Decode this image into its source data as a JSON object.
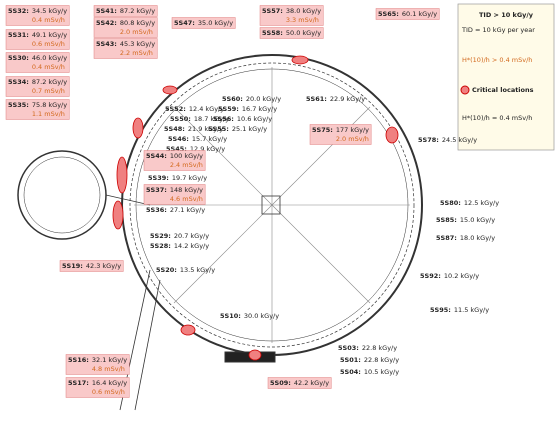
{
  "legend": {
    "title": "TID > 10 kGy/y",
    "tid_note": "TID = 10 kGy per year",
    "dose_title": "H*(10)/h > 0.4 mSv/h",
    "critical": "Critical locations",
    "dose_note": "H*(10)/h = 0.4 mSv/h"
  },
  "locations": [
    {
      "id": "5S32:",
      "tid": "34.5 kGy/y",
      "dose": "0.4 mSv/h"
    },
    {
      "id": "5S31:",
      "tid": "49.1 kGy/y",
      "dose": "0.6 mSv/h"
    },
    {
      "id": "5S30:",
      "tid": "46.0 kGy/y",
      "dose": "0.4 mSv/h"
    },
    {
      "id": "5S34:",
      "tid": "87.2 kGy/y",
      "dose": "0.7 mSv/h"
    },
    {
      "id": "5S35:",
      "tid": "75.8 kGy/y",
      "dose": "1.1 mSv/h"
    },
    {
      "id": "5S41:",
      "tid": "87.2 kGy/y"
    },
    {
      "id": "5S42:",
      "tid": "80.8 kGy/y",
      "dose": "2.0 mSv/h"
    },
    {
      "id": "5S43:",
      "tid": "45.3 kGy/y",
      "dose": "2.2 mSv/h"
    },
    {
      "id": "5S47:",
      "tid": "35.0 kGy/y"
    },
    {
      "id": "5S57:",
      "tid": "38.0 kGy/y",
      "dose": "3.3 mSv/h"
    },
    {
      "id": "5S58:",
      "tid": "50.0 kGy/y"
    },
    {
      "id": "5S65:",
      "tid": "60.1 kGy/y"
    },
    {
      "id": "5S60:",
      "tid": "20.0 kGy/y"
    },
    {
      "id": "5S59:",
      "tid": "16.7 kGy/y"
    },
    {
      "id": "5S56:",
      "tid": "10.6 kGy/y"
    },
    {
      "id": "5S55:",
      "tid": "25.1 kGy/y"
    },
    {
      "id": "5S52:",
      "tid": "12.4 kGy/y"
    },
    {
      "id": "5S50:",
      "tid": "18.7 kGy/y"
    },
    {
      "id": "5S48:",
      "tid": "21.9 kGy/y"
    },
    {
      "id": "5S46:",
      "tid": "15.7 kGy/y"
    },
    {
      "id": "5S45:",
      "tid": "12.9 kGy/y"
    },
    {
      "id": "5S61:",
      "tid": "22.9 kGy/y"
    },
    {
      "id": "5S75:",
      "tid": "177 kGy/y",
      "dose": "2.0 mSv/h"
    },
    {
      "id": "5S78:",
      "tid": "24.5 kGy/y"
    },
    {
      "id": "5S44:",
      "tid": "100 kGy/y",
      "dose": "2.4 mSv/h"
    },
    {
      "id": "5S39:",
      "tid": "19.7 kGy/y"
    },
    {
      "id": "5S37:",
      "tid": "148 kGy/y",
      "dose": "4.6 mSv/h"
    },
    {
      "id": "5S36:",
      "tid": "27.1 kGy/y"
    },
    {
      "id": "5S29:",
      "tid": "20.7 kGy/y"
    },
    {
      "id": "5S28:",
      "tid": "14.2 kGy/y"
    },
    {
      "id": "5S19:",
      "tid": "42.3 kGy/y"
    },
    {
      "id": "5S20:",
      "tid": "13.5 kGy/y"
    },
    {
      "id": "5S80:",
      "tid": "12.5 kGy/y"
    },
    {
      "id": "5S85:",
      "tid": "15.0 kGy/y"
    },
    {
      "id": "5S87:",
      "tid": "18.0 kGy/y"
    },
    {
      "id": "5S92:",
      "tid": "10.2 kGy/y"
    },
    {
      "id": "5S95:",
      "tid": "11.5 kGy/y"
    },
    {
      "id": "5S10:",
      "tid": "30.0 kGy/y"
    },
    {
      "id": "5S16:",
      "tid": "32.1 kGy/y",
      "dose": "4.8 mSv/h"
    },
    {
      "id": "5S17:",
      "tid": "16.4 kGy/y",
      "dose": "0.6 mSv/h"
    },
    {
      "id": "5S03:",
      "tid": "22.8 kGy/y"
    },
    {
      "id": "5S01:",
      "tid": "22.8 kGy/y"
    },
    {
      "id": "5S04:",
      "tid": "10.5 kGy/y"
    },
    {
      "id": "5S09:",
      "tid": "42.2 kGy/y"
    }
  ]
}
